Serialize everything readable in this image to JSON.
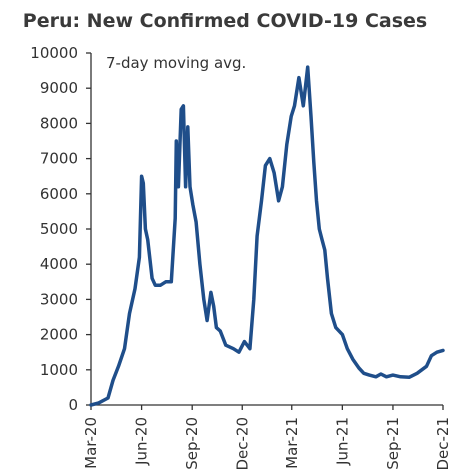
{
  "chart_data": {
    "type": "line",
    "title": "Peru: New Confirmed COVID-19 Cases",
    "annotation": "7-day moving avg.",
    "line_color": "#1f4e8a",
    "ylim": [
      0,
      10000
    ],
    "yticks": [
      0,
      1000,
      2000,
      3000,
      4000,
      5000,
      6000,
      7000,
      8000,
      9000,
      10000
    ],
    "ytick_labels": [
      "0",
      "1000",
      "2000",
      "3000",
      "4000",
      "5000",
      "6000",
      "7000",
      "8000",
      "9000",
      "10000"
    ],
    "xlim": [
      "2020-03-01",
      "2021-12-01"
    ],
    "xticks": [
      "2020-03-01",
      "2020-06-01",
      "2020-09-01",
      "2020-12-01",
      "2021-03-01",
      "2021-06-01",
      "2021-09-01",
      "2021-12-01"
    ],
    "xtick_labels": [
      "Mar-20",
      "Jun-20",
      "Sep-20",
      "Dec-20",
      "Mar-21",
      "Jun-21",
      "Sep-21",
      "Dec-21"
    ],
    "series": [
      {
        "x": [
          "2020-03-01",
          "2020-03-15",
          "2020-04-01",
          "2020-04-10",
          "2020-04-20",
          "2020-05-01",
          "2020-05-10",
          "2020-05-20",
          "2020-05-28",
          "2020-06-01",
          "2020-06-04",
          "2020-06-08",
          "2020-06-12",
          "2020-06-20",
          "2020-06-26",
          "2020-07-05",
          "2020-07-15",
          "2020-07-25",
          "2020-08-01",
          "2020-08-03",
          "2020-08-07",
          "2020-08-12",
          "2020-08-16",
          "2020-08-20",
          "2020-08-24",
          "2020-08-28",
          "2020-09-02",
          "2020-09-08",
          "2020-09-15",
          "2020-09-22",
          "2020-09-28",
          "2020-10-05",
          "2020-10-10",
          "2020-10-15",
          "2020-10-22",
          "2020-11-01",
          "2020-11-15",
          "2020-11-25",
          "2020-12-05",
          "2020-12-15",
          "2020-12-22",
          "2020-12-28",
          "2021-01-05",
          "2021-01-12",
          "2021-01-20",
          "2021-01-28",
          "2021-02-05",
          "2021-02-12",
          "2021-02-20",
          "2021-02-28",
          "2021-03-06",
          "2021-03-14",
          "2021-03-22",
          "2021-03-30",
          "2021-04-05",
          "2021-04-10",
          "2021-04-15",
          "2021-04-20",
          "2021-04-25",
          "2021-04-30",
          "2021-05-05",
          "2021-05-12",
          "2021-05-20",
          "2021-06-01",
          "2021-06-10",
          "2021-06-20",
          "2021-07-01",
          "2021-07-10",
          "2021-07-20",
          "2021-08-01",
          "2021-08-10",
          "2021-08-20",
          "2021-09-01",
          "2021-09-15",
          "2021-10-01",
          "2021-10-15",
          "2021-11-01",
          "2021-11-10",
          "2021-11-20",
          "2021-12-01"
        ],
        "y": [
          0,
          60,
          200,
          700,
          1100,
          1600,
          2600,
          3300,
          4200,
          6500,
          6300,
          5000,
          4700,
          3600,
          3400,
          3400,
          3500,
          3500,
          5300,
          7500,
          6200,
          8400,
          8500,
          6200,
          7900,
          6200,
          5700,
          5200,
          4000,
          3000,
          2400,
          3200,
          2800,
          2200,
          2100,
          1700,
          1600,
          1500,
          1800,
          1600,
          3000,
          4800,
          5800,
          6800,
          7000,
          6600,
          5800,
          6200,
          7400,
          8200,
          8500,
          9300,
          8500,
          9600,
          8200,
          6900,
          5800,
          5000,
          4700,
          4400,
          3600,
          2600,
          2200,
          2000,
          1600,
          1300,
          1050,
          900,
          850,
          800,
          880,
          800,
          850,
          800,
          790,
          900,
          1100,
          1400,
          1500,
          1550
        ]
      }
    ]
  }
}
